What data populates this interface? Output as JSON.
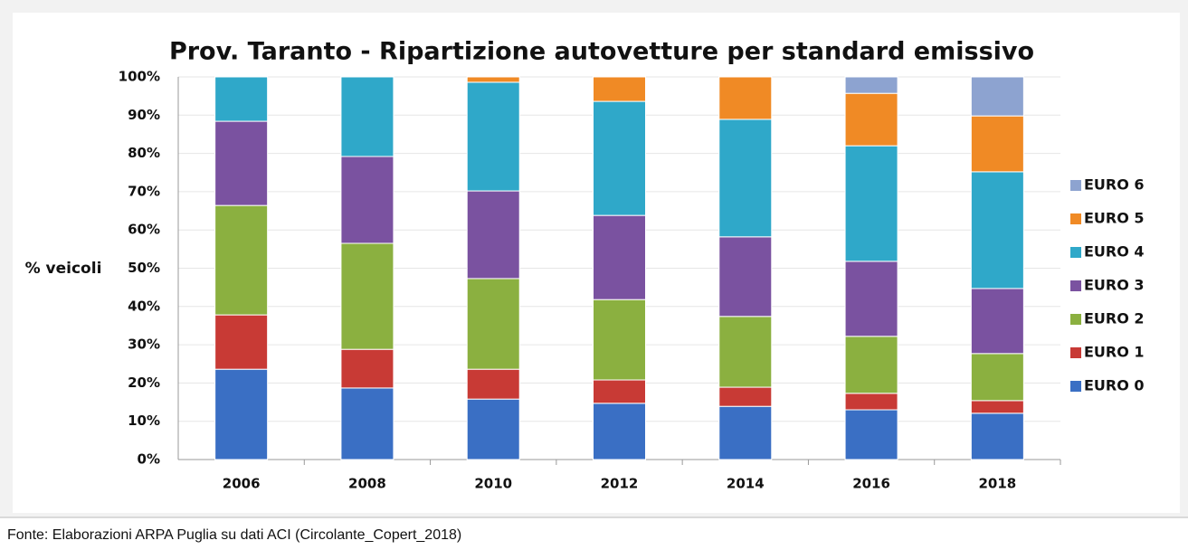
{
  "chart_data": {
    "type": "stacked_bar",
    "title": "Prov. Taranto - Ripartizione autovetture per standard emissivo",
    "y_label": "% veicoli",
    "categories": [
      "2006",
      "2008",
      "2010",
      "2012",
      "2014",
      "2016",
      "2018"
    ],
    "series": [
      {
        "name": "EURO 0",
        "color": "#3a6fc4",
        "values": [
          23.6,
          18.7,
          15.8,
          14.7,
          13.9,
          13.0,
          12.1
        ]
      },
      {
        "name": "EURO 1",
        "color": "#c83a35",
        "values": [
          14.2,
          10.1,
          7.8,
          6.1,
          5.0,
          4.3,
          3.3
        ]
      },
      {
        "name": "EURO 2",
        "color": "#8bb040",
        "values": [
          28.6,
          27.7,
          23.7,
          21.0,
          18.5,
          14.9,
          12.3
        ]
      },
      {
        "name": "EURO 3",
        "color": "#7a52a0",
        "values": [
          22.0,
          22.7,
          22.9,
          22.0,
          20.8,
          19.6,
          17.0
        ]
      },
      {
        "name": "EURO 4",
        "color": "#2fa8c9",
        "values": [
          11.6,
          20.8,
          28.4,
          29.8,
          30.7,
          30.2,
          30.5
        ]
      },
      {
        "name": "EURO 5",
        "color": "#f08a25",
        "values": [
          0,
          0,
          1.4,
          6.4,
          11.1,
          13.7,
          14.6
        ]
      },
      {
        "name": "EURO 6",
        "color": "#8da3d0",
        "values": [
          0,
          0,
          0,
          0,
          0,
          4.3,
          10.2
        ]
      }
    ],
    "ylim": [
      0,
      100
    ],
    "yticks": [
      {
        "value": 0,
        "label": "0%"
      },
      {
        "value": 10,
        "label": "10%"
      },
      {
        "value": 20,
        "label": "20%"
      },
      {
        "value": 30,
        "label": "30%"
      },
      {
        "value": 40,
        "label": "40%"
      },
      {
        "value": 50,
        "label": "50%"
      },
      {
        "value": 60,
        "label": "60%"
      },
      {
        "value": 70,
        "label": "70%"
      },
      {
        "value": 80,
        "label": "80%"
      },
      {
        "value": 90,
        "label": "90%"
      },
      {
        "value": 100,
        "label": "100%"
      }
    ],
    "grid": true,
    "legend": "right"
  },
  "footnote": "Fonte:  Elaborazioni ARPA Puglia su dati ACI (Circolante_Copert_2018)"
}
